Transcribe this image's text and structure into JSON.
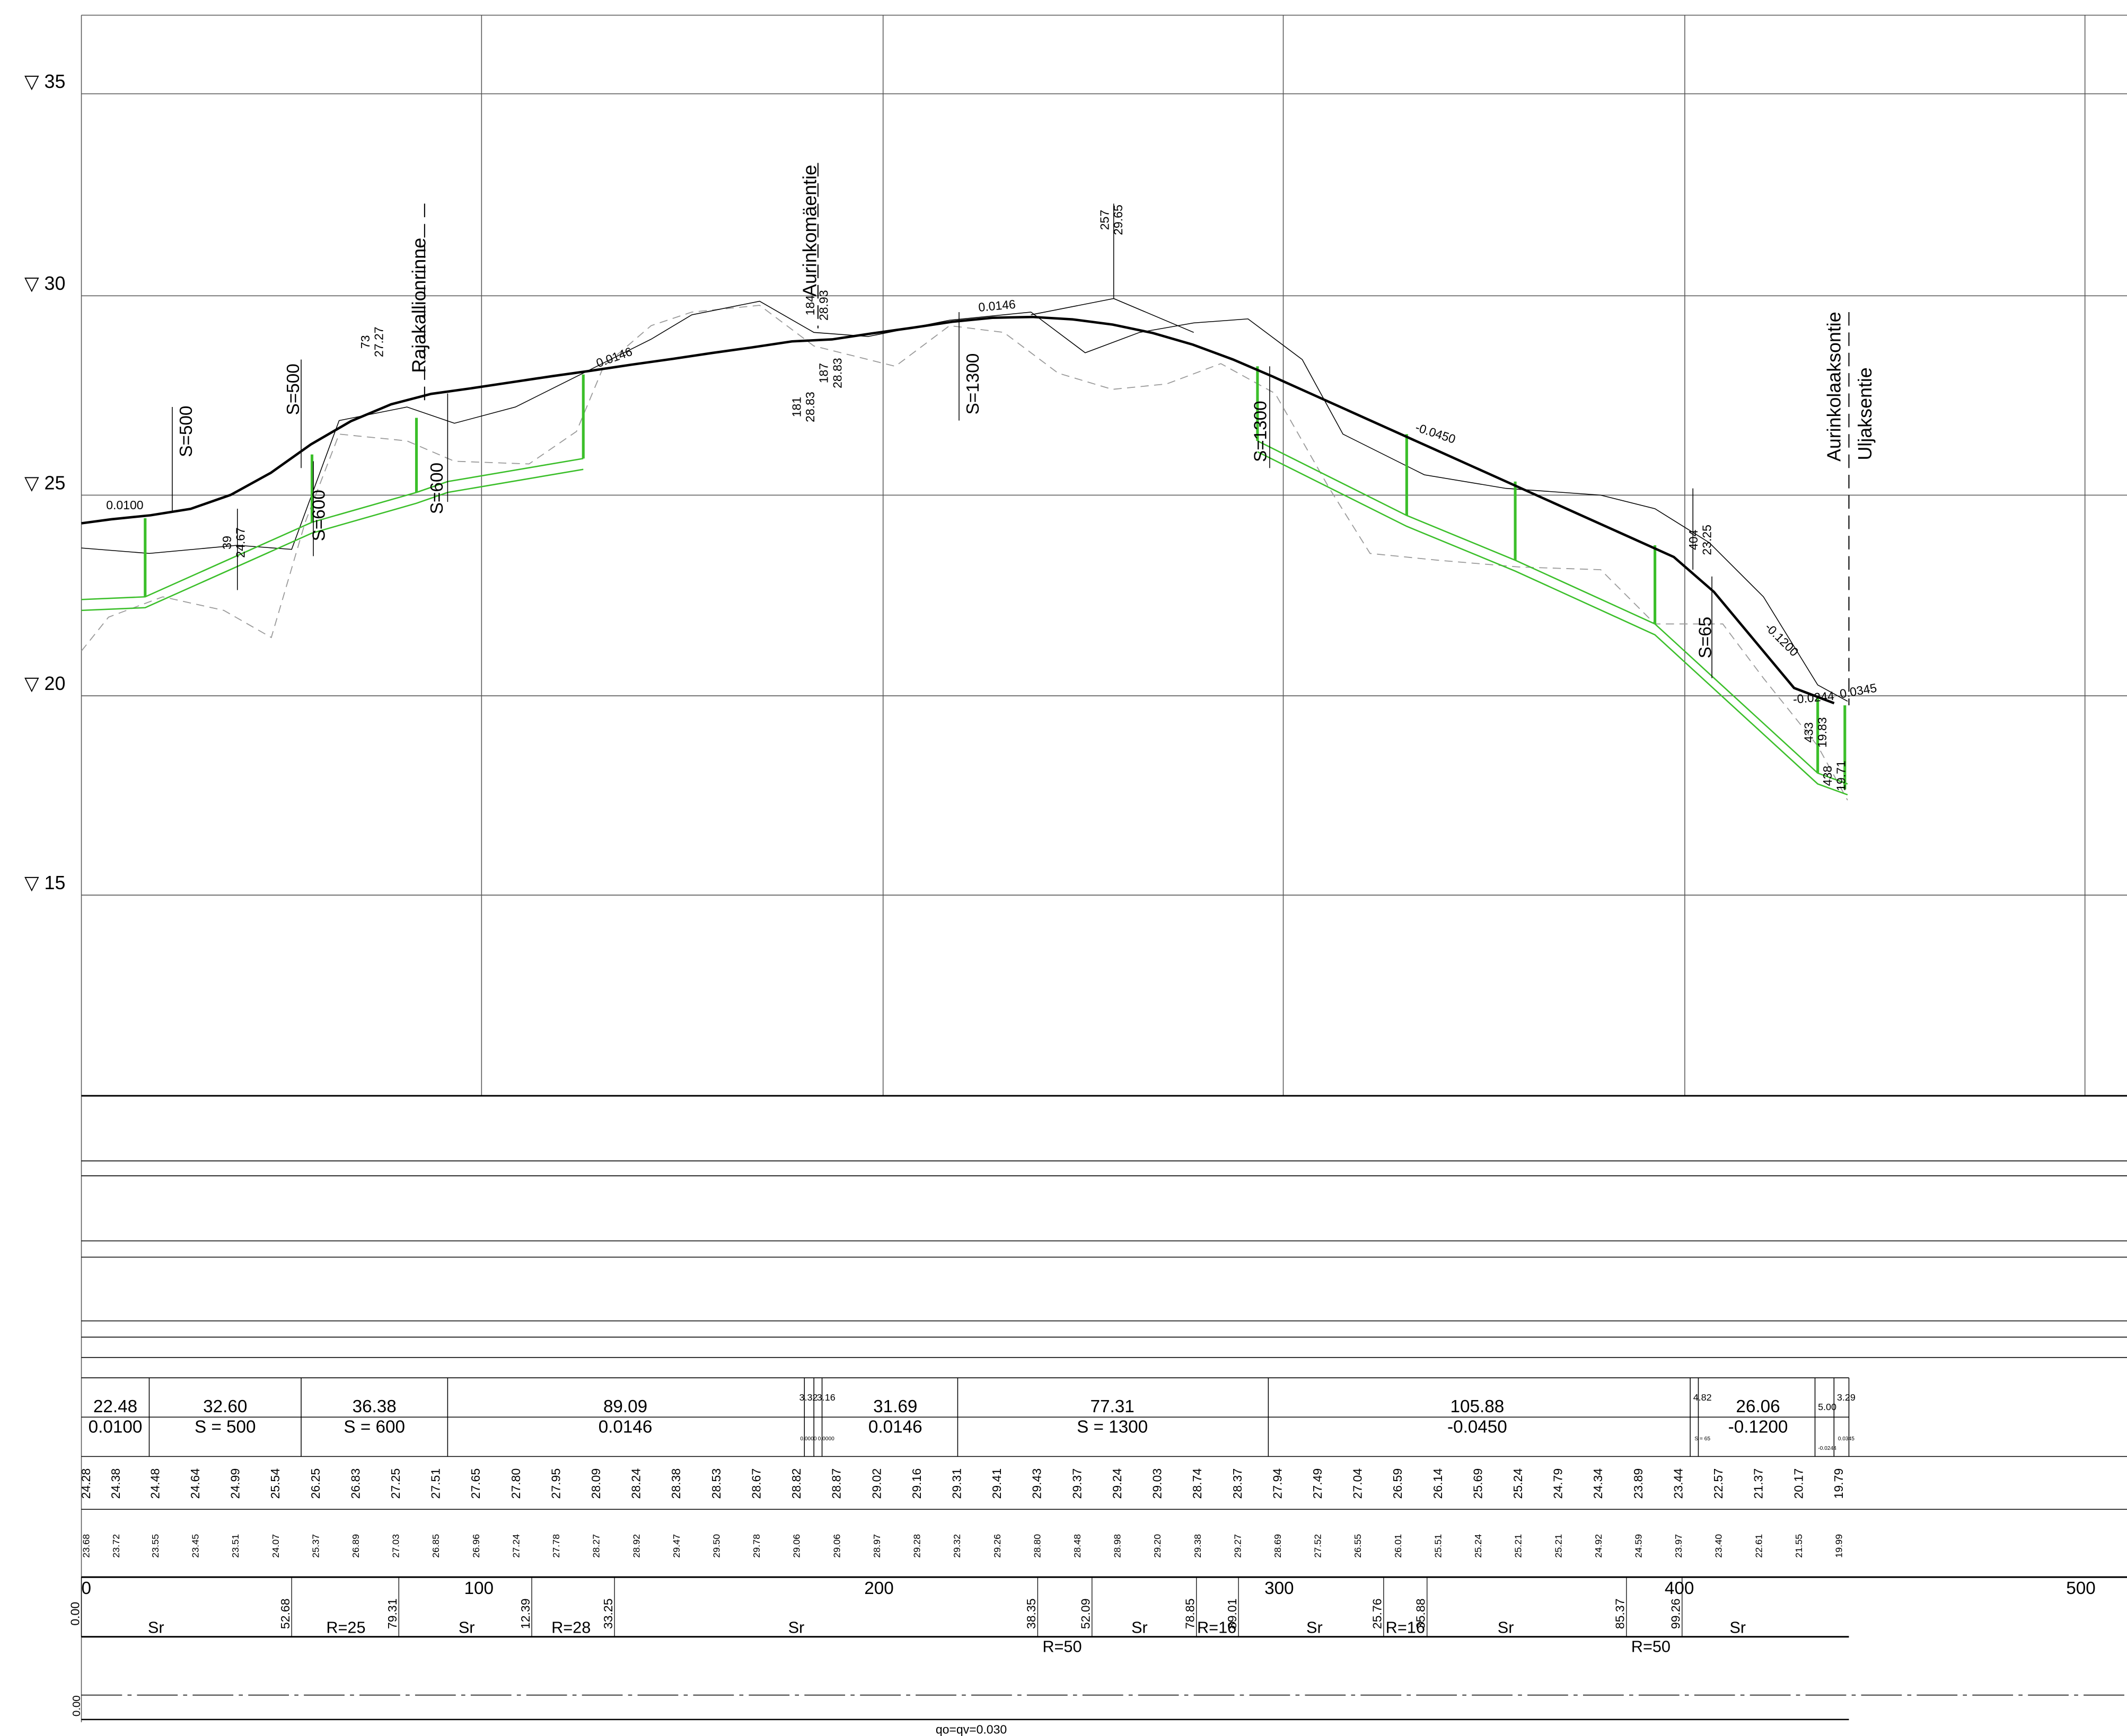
{
  "elevation_labels": [
    "▽ 35",
    "▽ 30",
    "▽ 25",
    "▽ 20",
    "▽ 15"
  ],
  "station_labels": [
    "0",
    "100",
    "200",
    "300",
    "400",
    "500"
  ],
  "road_names": [
    "Rajakallionrinne",
    "Aurinkomäentie",
    "Aurinkolaaksontie",
    "Uljaksentie"
  ],
  "curve_labels": [
    "S=500",
    "S=500",
    "S=600",
    "S=600",
    "S=1300",
    "S=1300",
    "S=65"
  ],
  "grade_labels": [
    "0.0100",
    "0.0146",
    "0.0146",
    "-0.0450",
    "-0.1200",
    "-0.0244",
    "0.0345"
  ],
  "point_labels": [
    [
      "39",
      "24.67"
    ],
    [
      "73",
      "27.27"
    ],
    [
      "184",
      "28.93"
    ],
    [
      "181",
      "28.83"
    ],
    [
      "187",
      "28.83"
    ],
    [
      "257",
      "29.65"
    ],
    [
      "404",
      "23.25"
    ],
    [
      "433",
      "19.83"
    ],
    [
      "438",
      "19.71"
    ]
  ],
  "band": {
    "segments": [
      {
        "length": "22.48",
        "grade": "0.0100"
      },
      {
        "length": "32.60",
        "grade": "S = 500"
      },
      {
        "length": "36.38",
        "grade": "S = 600"
      },
      {
        "length": "89.09",
        "grade": "0.0146"
      },
      {
        "length": "3.32",
        "grade": "0.0000"
      },
      {
        "length": "3.16",
        "grade": "0.0000"
      },
      {
        "length": "31.69",
        "grade": "0.0146"
      },
      {
        "length": "77.31",
        "grade": "S = 1300"
      },
      {
        "length": "105.88",
        "grade": "-0.0450"
      },
      {
        "length": "4.82",
        "grade": "S = 65"
      },
      {
        "length": "26.06",
        "grade": "-0.1200"
      },
      {
        "length": "5.00",
        "grade": "-0.0244"
      },
      {
        "length": "3.29",
        "grade": "0.0345"
      }
    ]
  },
  "design_elevations": [
    "24.28",
    "24.38",
    "24.48",
    "24.64",
    "24.99",
    "25.54",
    "26.25",
    "26.83",
    "27.25",
    "27.51",
    "27.65",
    "27.80",
    "27.95",
    "28.09",
    "28.24",
    "28.38",
    "28.53",
    "28.67",
    "28.82",
    "28.87",
    "29.02",
    "29.16",
    "29.31",
    "29.41",
    "29.43",
    "29.37",
    "29.24",
    "29.03",
    "28.74",
    "28.37",
    "27.94",
    "27.49",
    "27.04",
    "26.59",
    "26.14",
    "25.69",
    "25.24",
    "24.79",
    "24.34",
    "23.89",
    "23.44",
    "22.57",
    "21.37",
    "20.17",
    "19.79"
  ],
  "ground_elevations": [
    "23.68",
    "23.72",
    "23.55",
    "23.45",
    "23.51",
    "24.07",
    "25.37",
    "26.89",
    "27.03",
    "26.85",
    "26.96",
    "27.24",
    "27.78",
    "28.27",
    "28.92",
    "29.47",
    "29.50",
    "29.78",
    "29.06",
    "29.06",
    "28.97",
    "29.28",
    "29.32",
    "29.26",
    "28.80",
    "28.48",
    "28.98",
    "29.20",
    "29.38",
    "29.27",
    "28.69",
    "27.52",
    "26.55",
    "26.01",
    "25.51",
    "25.24",
    "25.21",
    "25.21",
    "24.92",
    "24.59",
    "23.97",
    "23.40",
    "22.61",
    "21.55",
    "19.99"
  ],
  "alignment": {
    "stations": [
      "0.00",
      "52.68",
      "79.31",
      "12.39",
      "33.25",
      "38.35",
      "52.09",
      "78.85",
      "89.01",
      "25.76",
      "35.88",
      "85.37",
      "99.26"
    ],
    "types": [
      "Sr",
      "R=25",
      "Sr",
      "R=28",
      "Sr",
      "R=50",
      "Sr",
      "R=16",
      "Sr",
      "R=16",
      "Sr",
      "R=50",
      "Sr"
    ]
  },
  "bottom": {
    "start": "0.00",
    "note": "qo=qv=0.030"
  }
}
